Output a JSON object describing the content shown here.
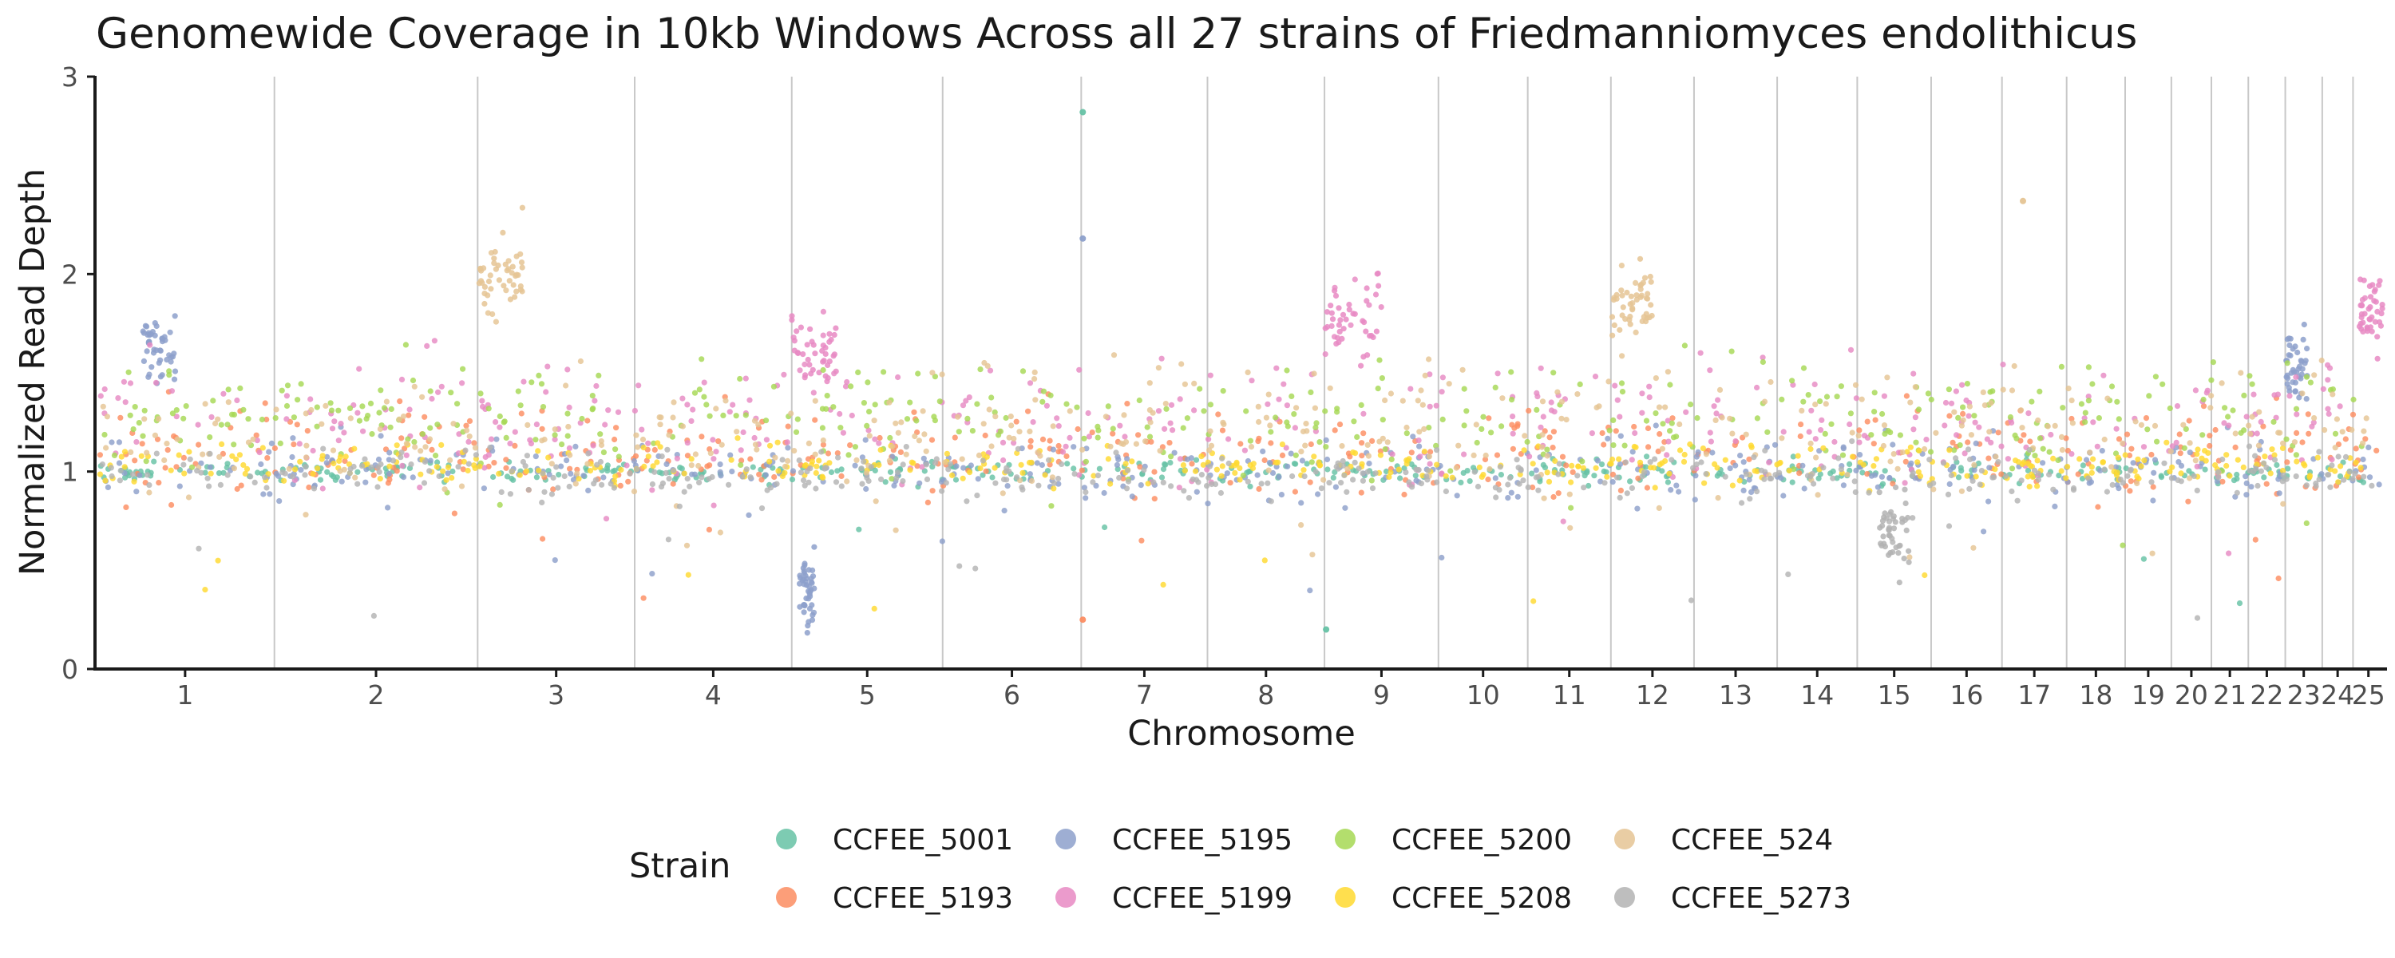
{
  "chart_data": {
    "type": "scatter",
    "title": "Genomewide Coverage in 10kb Windows Across all 27 strains of Friedmanniomyces endolithicus",
    "xlabel": "Chromosome",
    "ylabel": "Normalized Read Depth",
    "ylim": [
      0,
      3
    ],
    "y_ticks": [
      "0",
      "1",
      "2",
      "3"
    ],
    "categories": [
      "1",
      "2",
      "3",
      "4",
      "5",
      "6",
      "7",
      "8",
      "9",
      "10",
      "11",
      "12",
      "13",
      "14",
      "15",
      "16",
      "17",
      "18",
      "19",
      "20",
      "21",
      "22",
      "23",
      "24",
      "25"
    ],
    "chromosome_widths": [
      2.9,
      3.3,
      2.55,
      2.55,
      2.45,
      2.25,
      2.05,
      1.9,
      1.85,
      1.45,
      1.35,
      1.35,
      1.35,
      1.3,
      1.2,
      1.15,
      1.05,
      0.95,
      0.75,
      0.65,
      0.6,
      0.6,
      0.6,
      0.5,
      0.5
    ],
    "legend_title": "Strain",
    "legend_position": "bottom",
    "grid": false,
    "series": [
      {
        "name": "CCFEE_5001",
        "color": "#66c2a5",
        "baseline": 1.0,
        "spread": 0.03,
        "features": [
          {
            "chromosome": "7",
            "offset": 0.0,
            "value": 2.82
          },
          {
            "chromosome": "9",
            "offset": 0.0,
            "value": 0.2
          }
        ]
      },
      {
        "name": "CCFEE_5193",
        "color": "#fc8d62",
        "baseline": 1.1,
        "spread": 0.12,
        "features": [
          {
            "chromosome": "7",
            "offset": 0.0,
            "value": 0.25
          }
        ]
      },
      {
        "name": "CCFEE_5195",
        "color": "#8da0cb",
        "baseline": 1.0,
        "spread": 0.08,
        "features": [
          {
            "chromosome": "1",
            "segment": [
              0.25,
              0.45
            ],
            "value": 1.6
          },
          {
            "chromosome": "5",
            "segment": [
              0.05,
              0.15
            ],
            "value": 0.4
          },
          {
            "chromosome": "7",
            "offset": 0.0,
            "value": 2.18
          },
          {
            "chromosome": "23",
            "segment": [
              0.0,
              0.6
            ],
            "value": 1.55
          }
        ]
      },
      {
        "name": "CCFEE_5199",
        "color": "#e78ac3",
        "baseline": 1.25,
        "spread": 0.15,
        "features": [
          {
            "chromosome": "5",
            "segment": [
              0.0,
              0.3
            ],
            "value": 1.62
          },
          {
            "chromosome": "9",
            "segment": [
              0.0,
              0.5
            ],
            "value": 1.78
          },
          {
            "chromosome": "25",
            "segment": [
              0.2,
              1.0
            ],
            "value": 1.8
          }
        ]
      },
      {
        "name": "CCFEE_5200",
        "color": "#a6d854",
        "baseline": 1.28,
        "spread": 0.14,
        "features": []
      },
      {
        "name": "CCFEE_5208",
        "color": "#ffd92f",
        "baseline": 1.03,
        "spread": 0.05,
        "features": []
      },
      {
        "name": "CCFEE_524",
        "color": "#e5c494",
        "baseline": 1.2,
        "spread": 0.16,
        "features": [
          {
            "chromosome": "3",
            "segment": [
              0.0,
              0.3
            ],
            "value": 2.0
          },
          {
            "chromosome": "12",
            "segment": [
              0.0,
              0.5
            ],
            "value": 1.85
          },
          {
            "chromosome": "17",
            "offset": 0.3,
            "value": 2.37
          }
        ]
      },
      {
        "name": "CCFEE_5273",
        "color": "#b3b3b3",
        "baseline": 0.98,
        "spread": 0.06,
        "features": [
          {
            "chromosome": "15",
            "segment": [
              0.3,
              0.7
            ],
            "value": 0.7
          }
        ]
      }
    ]
  }
}
